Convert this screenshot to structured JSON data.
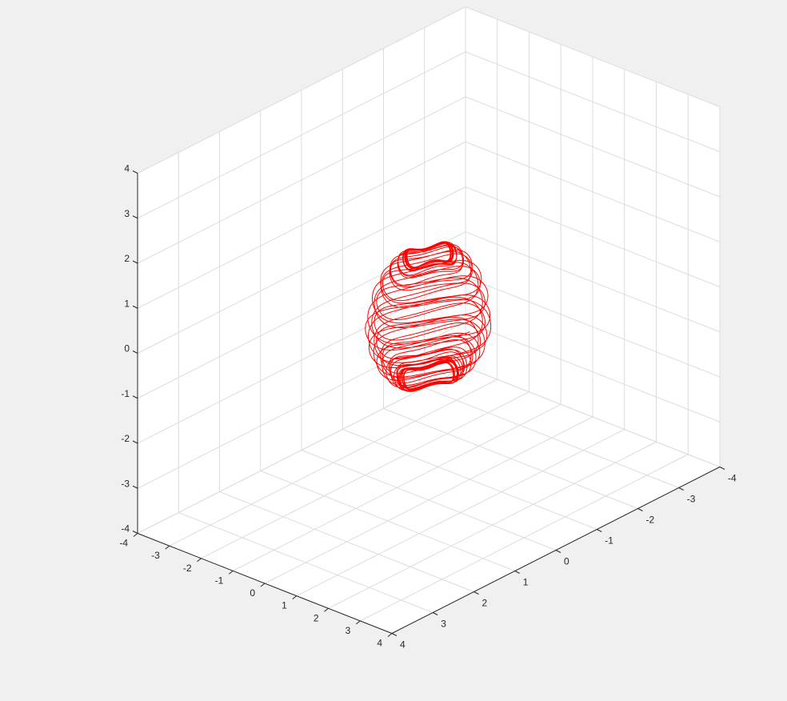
{
  "chart_data": {
    "type": "line",
    "projection": "3d",
    "title": "",
    "xlabel": "",
    "ylabel": "",
    "zlabel": "",
    "xlim": [
      -4,
      4
    ],
    "ylim": [
      -4,
      4
    ],
    "zlim": [
      -4,
      4
    ],
    "grid": true,
    "background": "#f0f0f0",
    "axes_background": "#ffffff",
    "series": [
      {
        "color": "#ff0000",
        "shape": "chaotic-attractor-trajectory",
        "x_range": [
          -1.0,
          1.0
        ],
        "y_range": [
          -1.0,
          1.0
        ],
        "z_range": [
          -1.2,
          1.4
        ]
      }
    ],
    "x_ticks": [
      {
        "value": -4,
        "label": "-4"
      },
      {
        "value": -3,
        "label": "-3"
      },
      {
        "value": -2,
        "label": "-2"
      },
      {
        "value": -1,
        "label": "-1"
      },
      {
        "value": 0,
        "label": "0"
      },
      {
        "value": 1,
        "label": "1"
      },
      {
        "value": 2,
        "label": "2"
      },
      {
        "value": 3,
        "label": "3"
      },
      {
        "value": 4,
        "label": "4"
      }
    ],
    "y_ticks": [
      {
        "value": -4,
        "label": "-4"
      },
      {
        "value": -3,
        "label": "-3"
      },
      {
        "value": -2,
        "label": "-2"
      },
      {
        "value": -1,
        "label": "-1"
      },
      {
        "value": 0,
        "label": "0"
      },
      {
        "value": 1,
        "label": "1"
      },
      {
        "value": 2,
        "label": "2"
      },
      {
        "value": 3,
        "label": "3"
      },
      {
        "value": 4,
        "label": "4"
      }
    ],
    "z_ticks": [
      {
        "value": -4,
        "label": "-4"
      },
      {
        "value": -3,
        "label": "-3"
      },
      {
        "value": -2,
        "label": "-2"
      },
      {
        "value": -1,
        "label": "-1"
      },
      {
        "value": 0,
        "label": "0"
      },
      {
        "value": 1,
        "label": "1"
      },
      {
        "value": 2,
        "label": "2"
      },
      {
        "value": 3,
        "label": "3"
      },
      {
        "value": 4,
        "label": "4"
      }
    ]
  }
}
